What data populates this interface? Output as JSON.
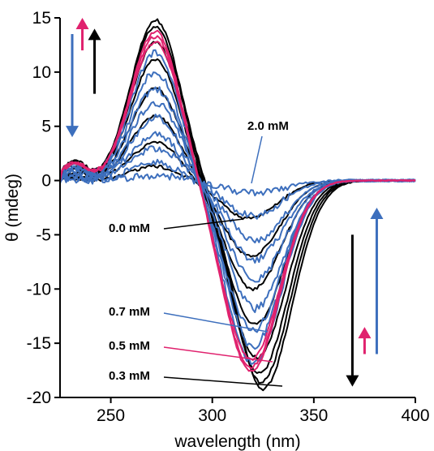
{
  "chart_data": {
    "type": "line",
    "xlabel": "wavelength (nm)",
    "ylabel": "θ (mdeg)",
    "xlim": [
      225,
      400
    ],
    "ylim": [
      -20,
      15
    ],
    "xticks": [
      250,
      300,
      350,
      400
    ],
    "yticks": [
      15,
      10,
      5,
      0,
      -5,
      -10,
      -15,
      -20
    ],
    "colors": {
      "black": "#000000",
      "blue": "#3d6fbd",
      "pink": "#e0226e"
    },
    "annotations": [
      {
        "text": "2.0 mM",
        "color": "blue",
        "x": 300,
        "y": 0.5
      },
      {
        "text": "0.0 mM",
        "color": "black",
        "x": 300,
        "y": -3.5
      },
      {
        "text": "0.7 mM",
        "color": "blue",
        "x": 320,
        "y": -14
      },
      {
        "text": "0.5 mM",
        "color": "pink",
        "x": 322,
        "y": -17.2
      },
      {
        "text": "0.3 mM",
        "color": "black",
        "x": 323,
        "y": -19.2
      }
    ],
    "arrows": [
      {
        "color": "pink",
        "direction": "up",
        "x": 236,
        "y_from": 12,
        "y_to": 15
      },
      {
        "color": "black",
        "direction": "up",
        "x": 242,
        "y_from": 8,
        "y_to": 14
      },
      {
        "color": "blue",
        "direction": "down",
        "x": 231,
        "y_from": 13.5,
        "y_to": 4
      },
      {
        "color": "black",
        "direction": "down",
        "x": 369,
        "y_from": -5,
        "y_to": -19
      },
      {
        "color": "pink",
        "direction": "up",
        "x": 375,
        "y_from": -16,
        "y_to": -13.5
      },
      {
        "color": "blue",
        "direction": "up",
        "x": 381,
        "y_from": -16,
        "y_to": -2.5
      }
    ],
    "series": [
      {
        "color": "black",
        "pos_peak": 1.3,
        "neg_peak": -3.5,
        "pos_center": 272,
        "neg_center": 318
      },
      {
        "color": "black",
        "pos_peak": 3.5,
        "neg_peak": -7.0,
        "pos_center": 272,
        "neg_center": 319
      },
      {
        "color": "black",
        "pos_peak": 6.0,
        "neg_peak": -10.0,
        "pos_center": 272,
        "neg_center": 320
      },
      {
        "color": "black",
        "pos_peak": 8.5,
        "neg_peak": -13.3,
        "pos_center": 272,
        "neg_center": 321
      },
      {
        "color": "black",
        "pos_peak": 11.2,
        "neg_peak": -16.3,
        "pos_center": 272,
        "neg_center": 322
      },
      {
        "color": "black",
        "pos_peak": 12.8,
        "neg_peak": -17.8,
        "pos_center": 272,
        "neg_center": 323
      },
      {
        "color": "black",
        "pos_peak": 14.2,
        "neg_peak": -18.6,
        "pos_center": 272,
        "neg_center": 324
      },
      {
        "color": "black",
        "pos_peak": 14.8,
        "neg_peak": -19.2,
        "pos_center": 272,
        "neg_center": 325
      },
      {
        "color": "pink",
        "pos_peak": 12.8,
        "neg_peak": -16.5,
        "pos_center": 272,
        "neg_center": 319
      },
      {
        "color": "pink",
        "pos_peak": 13.3,
        "neg_peak": -17.2,
        "pos_center": 272,
        "neg_center": 319
      },
      {
        "color": "pink",
        "pos_peak": 13.8,
        "neg_peak": -17.6,
        "pos_center": 272,
        "neg_center": 319
      },
      {
        "color": "blue",
        "pos_peak": 11.8,
        "neg_peak": -16.8,
        "pos_center": 272,
        "neg_center": 320
      },
      {
        "color": "blue",
        "pos_peak": 10.0,
        "neg_peak": -15.3,
        "pos_center": 272,
        "neg_center": 320
      },
      {
        "color": "blue",
        "pos_peak": 8.5,
        "neg_peak": -13.8,
        "pos_center": 272,
        "neg_center": 320
      },
      {
        "color": "blue",
        "pos_peak": 7.2,
        "neg_peak": -11.8,
        "pos_center": 272,
        "neg_center": 321
      },
      {
        "color": "blue",
        "pos_peak": 5.8,
        "neg_peak": -9.2,
        "pos_center": 272,
        "neg_center": 321
      },
      {
        "color": "blue",
        "pos_peak": 4.3,
        "neg_peak": -7.3,
        "pos_center": 272,
        "neg_center": 321
      },
      {
        "color": "blue",
        "pos_peak": 3.0,
        "neg_peak": -5.5,
        "pos_center": 272,
        "neg_center": 321
      },
      {
        "color": "blue",
        "pos_peak": 1.6,
        "neg_peak": -3.3,
        "pos_center": 272,
        "neg_center": 320
      },
      {
        "color": "blue",
        "pos_peak": 0.5,
        "neg_peak": -1.2,
        "pos_center": 272,
        "neg_center": 320
      }
    ]
  }
}
